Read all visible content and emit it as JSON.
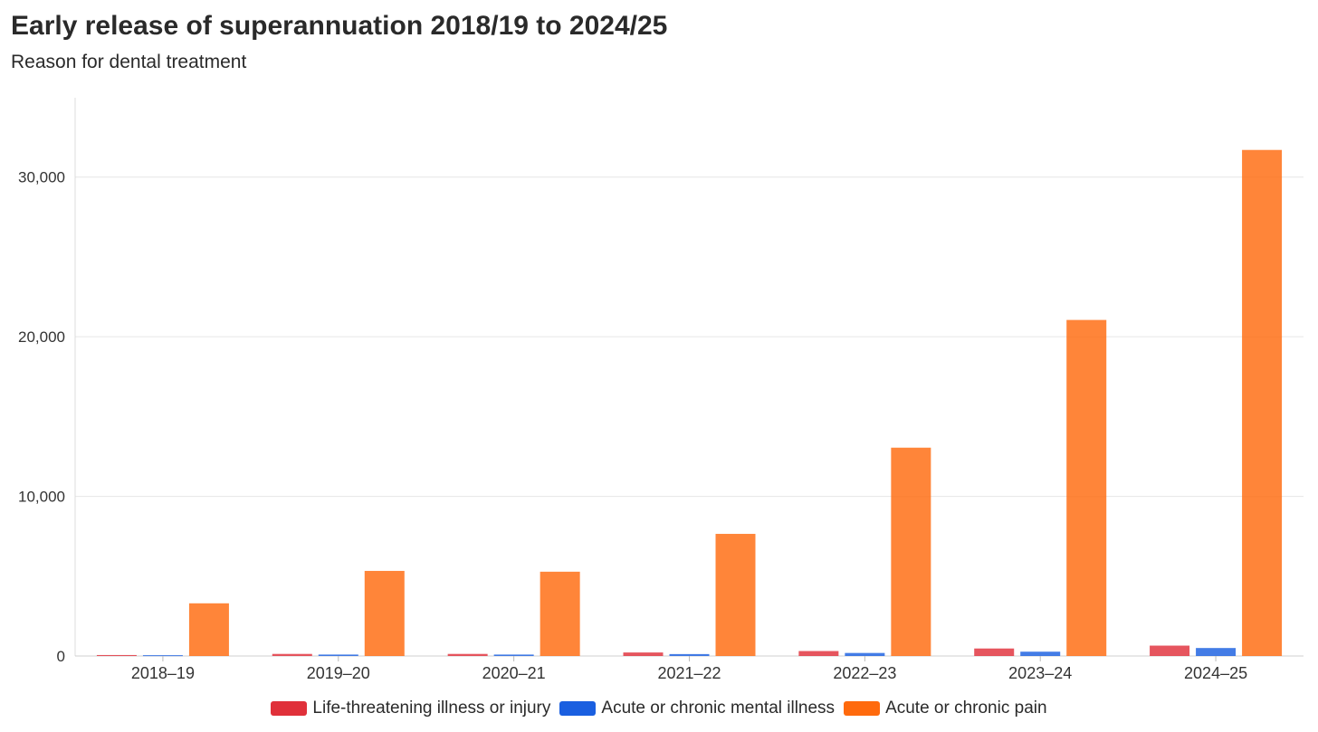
{
  "chart_data": {
    "type": "bar",
    "title": "Early release of superannuation 2018/19 to 2024/25",
    "subtitle": "Reason for dental treatment",
    "xlabel": "",
    "ylabel": "",
    "ylim": [
      0,
      35000
    ],
    "yticks": [
      0,
      10000,
      20000,
      30000
    ],
    "ytick_labels": [
      "0",
      "10,000",
      "20,000",
      "30,000"
    ],
    "grid": true,
    "legend_position": "bottom",
    "categories": [
      "2018–19",
      "2019–20",
      "2020–21",
      "2021–22",
      "2022–23",
      "2023–24",
      "2024–25"
    ],
    "series": [
      {
        "name": "Life-threatening illness or injury",
        "color": "#e0303a",
        "values": [
          60,
          130,
          130,
          220,
          310,
          470,
          650
        ]
      },
      {
        "name": "Acute or chronic mental illness",
        "color": "#1a5fe0",
        "values": [
          50,
          90,
          90,
          120,
          190,
          270,
          500
        ]
      },
      {
        "name": "Acute or chronic pain",
        "color": "#ff6a0d",
        "values": [
          3300,
          5330,
          5280,
          7650,
          13050,
          21050,
          31700
        ]
      }
    ]
  }
}
